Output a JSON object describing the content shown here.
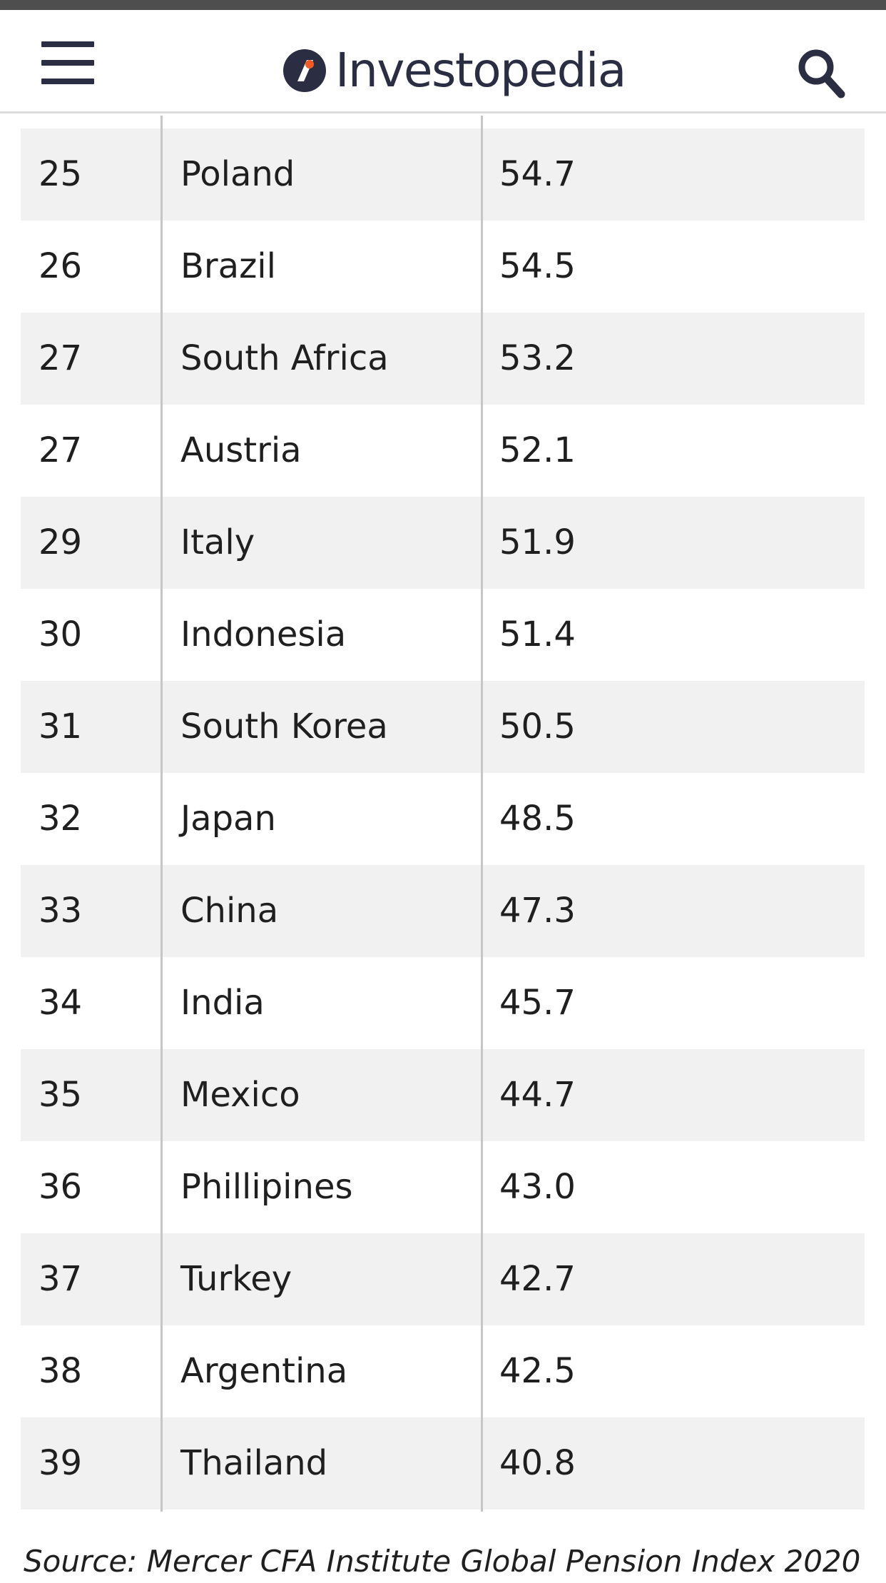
{
  "header": {
    "logo_text": "Investopedia",
    "menu_icon": "hamburger-menu-icon",
    "search_icon": "search-icon"
  },
  "colors": {
    "brand_navy": "#2b2d42",
    "brand_accent": "#f15a24",
    "row_shade": "#f1f1f1",
    "divider": "#c6c6c6"
  },
  "table": {
    "rows": [
      {
        "rank": "25",
        "country": "Poland",
        "score": "54.7"
      },
      {
        "rank": "26",
        "country": "Brazil",
        "score": "54.5"
      },
      {
        "rank": "27",
        "country": "South Africa",
        "score": "53.2"
      },
      {
        "rank": "27",
        "country": "Austria",
        "score": "52.1"
      },
      {
        "rank": "29",
        "country": "Italy",
        "score": "51.9"
      },
      {
        "rank": "30",
        "country": "Indonesia",
        "score": "51.4"
      },
      {
        "rank": "31",
        "country": "South Korea",
        "score": "50.5"
      },
      {
        "rank": "32",
        "country": "Japan",
        "score": "48.5"
      },
      {
        "rank": "33",
        "country": "China",
        "score": "47.3"
      },
      {
        "rank": "34",
        "country": "India",
        "score": "45.7"
      },
      {
        "rank": "35",
        "country": "Mexico",
        "score": "44.7"
      },
      {
        "rank": "36",
        "country": "Phillipines",
        "score": "43.0"
      },
      {
        "rank": "37",
        "country": "Turkey",
        "score": "42.7"
      },
      {
        "rank": "38",
        "country": "Argentina",
        "score": "42.5"
      },
      {
        "rank": "39",
        "country": "Thailand",
        "score": "40.8"
      }
    ]
  },
  "source_text": "Source: Mercer CFA Institute Global Pension Index 2020"
}
